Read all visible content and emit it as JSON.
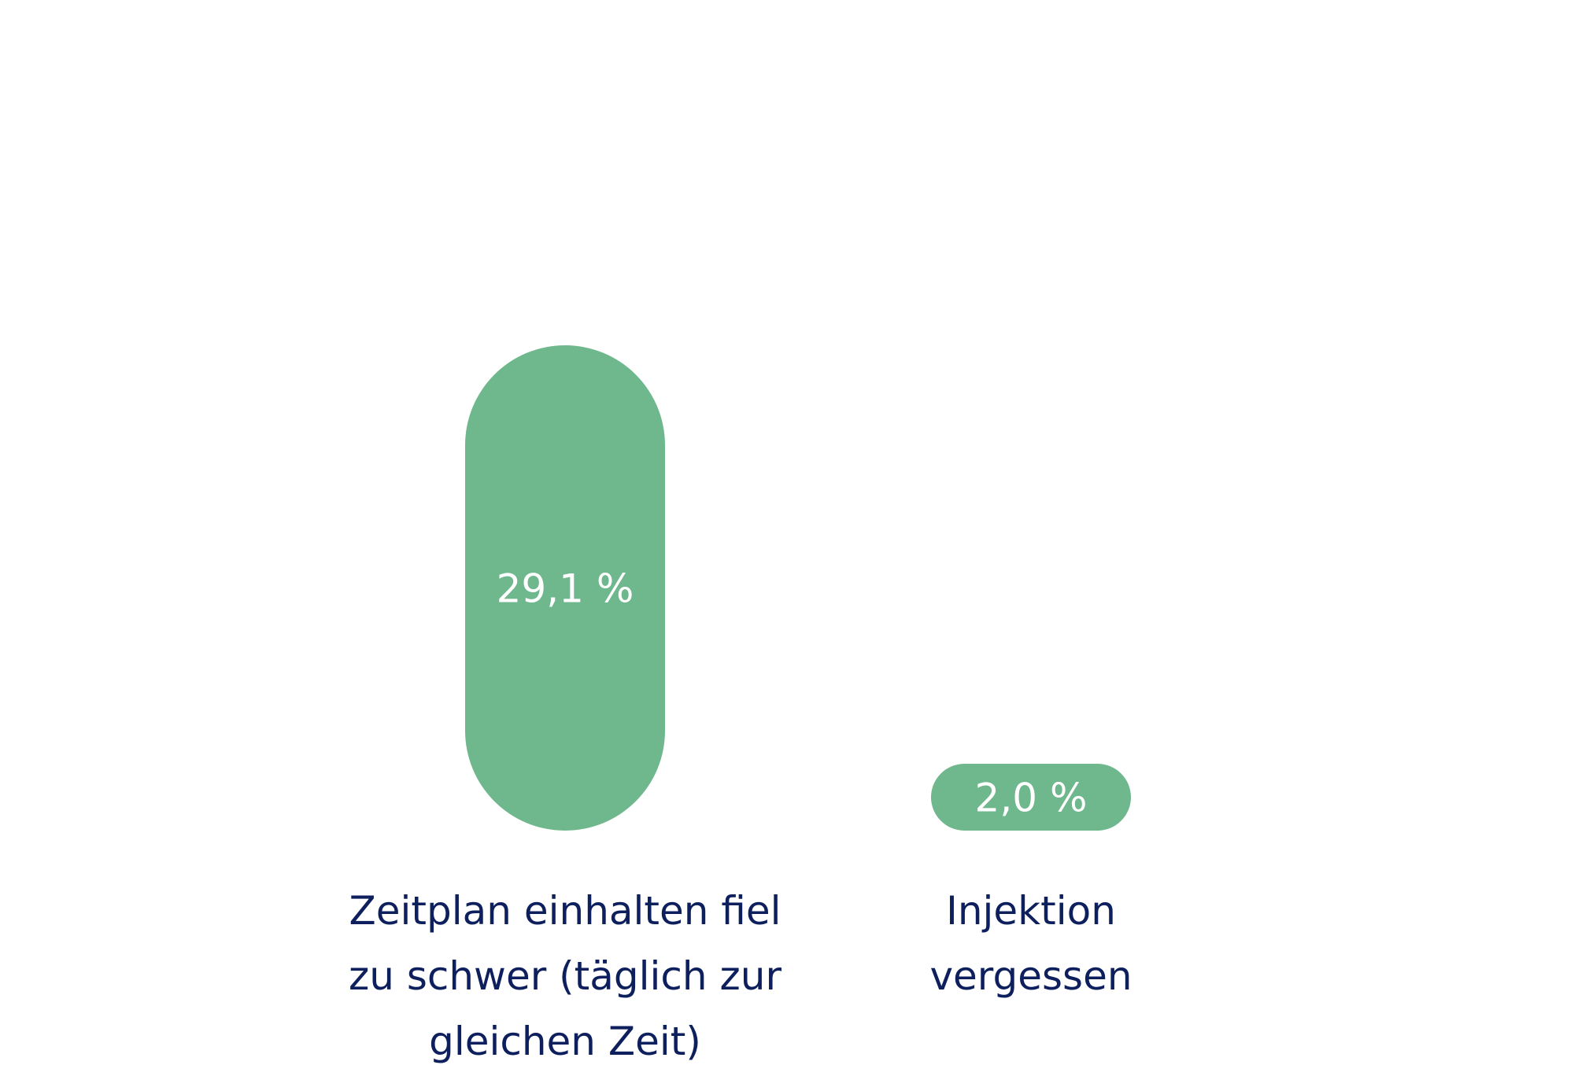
{
  "colors": {
    "bar": "#6fb78c",
    "value_text": "#ffffff",
    "category_text": "#0d1f5c",
    "background": "#ffffff"
  },
  "chart_data": {
    "type": "bar",
    "title": "",
    "xlabel": "",
    "ylabel": "",
    "unit": "%",
    "ylim": [
      0,
      29.1
    ],
    "grid": false,
    "legend": "none",
    "categories": [
      [
        "Zeitplan einhalten fiel",
        "zu schwer (täglich zur",
        "gleichen Zeit)"
      ],
      [
        "Injektion",
        "vergessen"
      ]
    ],
    "values": [
      29.1,
      2.0
    ],
    "value_labels": [
      "29,1 %",
      "2,0 %"
    ]
  }
}
